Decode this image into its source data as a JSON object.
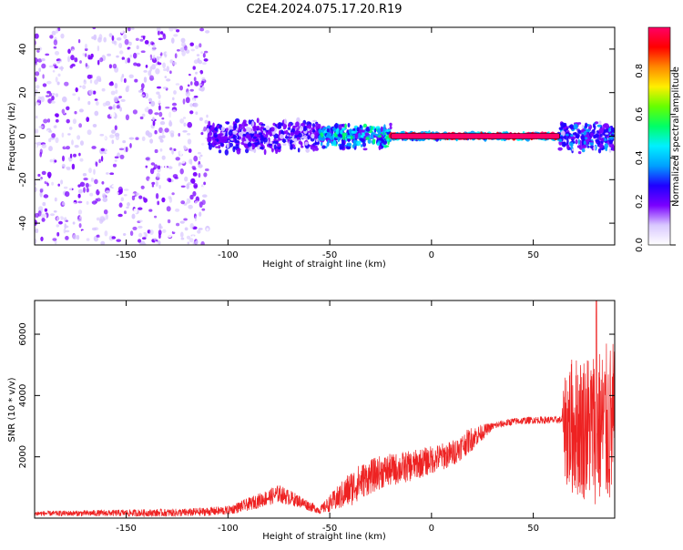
{
  "title": "C2E4.2024.075.17.20.R19",
  "colors": {
    "snr_line": "#ee2222",
    "axis": "#000000",
    "background": "#ffffff"
  },
  "chart_data": [
    {
      "type": "heatmap",
      "xlabel": "Height of straight line (km)",
      "ylabel": "Frequency (Hz)",
      "xlim": [
        -195,
        90
      ],
      "ylim": [
        -50,
        50
      ],
      "x_ticks": [
        -150,
        -100,
        -50,
        0,
        50
      ],
      "y_ticks": [
        -40,
        -20,
        0,
        20,
        40
      ],
      "colorbar": {
        "label": "Normalized spectral amplitude",
        "range": [
          0,
          1
        ],
        "ticks": [
          "0.0",
          "0.2",
          "0.4",
          "0.6",
          "0.8"
        ],
        "colormap": [
          "#ffffff",
          "#d9c8ff",
          "#7a00ff",
          "#1f00ff",
          "#00a0ff",
          "#00f0ff",
          "#00ff66",
          "#66ff00",
          "#ffee00",
          "#ff8800",
          "#ff0000",
          "#ff0066"
        ]
      },
      "regions": [
        {
          "x": [
            -195,
            -110
          ],
          "freq_spread": 50,
          "amplitude": 0.05,
          "description_key": "broadband noise"
        },
        {
          "x": [
            -110,
            -55
          ],
          "freq_spread": 8,
          "amplitude": 0.25
        },
        {
          "x": [
            -55,
            -20
          ],
          "freq_spread": 6,
          "amplitude": 0.45
        },
        {
          "x": [
            -20,
            63
          ],
          "freq_spread": 1.5,
          "amplitude": 0.95
        },
        {
          "x": [
            63,
            90
          ],
          "freq_spread": 8,
          "amplitude": 0.3
        }
      ]
    },
    {
      "type": "line",
      "xlabel": "Height of straight line (km)",
      "ylabel": "SNR (10 * v/v)",
      "xlim": [
        -195,
        90
      ],
      "ylim": [
        0,
        7100
      ],
      "x_ticks": [
        -150,
        -100,
        -50,
        0,
        50
      ],
      "y_ticks": [
        2000,
        4000,
        6000
      ],
      "series_envelope": [
        {
          "x": -195,
          "y": 150
        },
        {
          "x": -120,
          "y": 180
        },
        {
          "x": -100,
          "y": 250
        },
        {
          "x": -90,
          "y": 450
        },
        {
          "x": -75,
          "y": 800
        },
        {
          "x": -65,
          "y": 550
        },
        {
          "x": -55,
          "y": 250
        },
        {
          "x": -45,
          "y": 700
        },
        {
          "x": -35,
          "y": 1200
        },
        {
          "x": -25,
          "y": 1500
        },
        {
          "x": -10,
          "y": 1700
        },
        {
          "x": 0,
          "y": 1900
        },
        {
          "x": 10,
          "y": 2100
        },
        {
          "x": 20,
          "y": 2600
        },
        {
          "x": 30,
          "y": 3000
        },
        {
          "x": 40,
          "y": 3150
        },
        {
          "x": 50,
          "y": 3200
        },
        {
          "x": 60,
          "y": 3200
        },
        {
          "x": 65,
          "y": 3200
        },
        {
          "x": 67,
          "y": 3000
        },
        {
          "x": 75,
          "y": 3000
        },
        {
          "x": 82,
          "y": 3000
        },
        {
          "x": 90,
          "y": 3000
        }
      ],
      "noise_amplitude": [
        {
          "x": -195,
          "a": 80
        },
        {
          "x": -100,
          "a": 150
        },
        {
          "x": -75,
          "a": 300
        },
        {
          "x": -55,
          "a": 120
        },
        {
          "x": -40,
          "a": 600
        },
        {
          "x": 20,
          "a": 400
        },
        {
          "x": 30,
          "a": 120
        },
        {
          "x": 64,
          "a": 120
        },
        {
          "x": 66,
          "a": 2200
        },
        {
          "x": 90,
          "a": 2800
        }
      ],
      "peak": {
        "x": 81,
        "y": 7100
      }
    }
  ]
}
